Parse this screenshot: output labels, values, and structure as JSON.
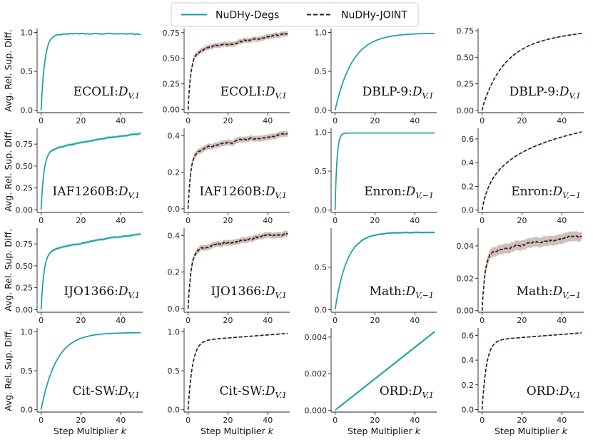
{
  "legend": {
    "position": "top-center",
    "entries": [
      {
        "label": "NuDHy-Degs",
        "color": "#1a9ea3",
        "style": "solid"
      },
      {
        "label": "NuDHy-JOINT",
        "color": "#3b1a12",
        "style": "dashed"
      }
    ]
  },
  "chart_data": {
    "type": "line",
    "layout": {
      "rows": 4,
      "cols": 4
    },
    "shared_ylabel": "Avg. Rel. Sup. Diff.",
    "shared_xlabel": "Step Multiplier",
    "shared_xlabel_var": "k",
    "xlim": [
      -2,
      51
    ],
    "x_ticks": [
      0,
      20,
      40
    ],
    "band_color": "#c5b5b2",
    "band_color_teal": "#9fd8da",
    "panels": [
      {
        "row": 0,
        "col": 0,
        "dataset": "ECOLI",
        "subscript": "V,1",
        "series": "NuDHy-Degs",
        "ylim": [
          -0.03,
          1.05
        ],
        "yticks": [
          0.0,
          0.5,
          1.0
        ],
        "tick_labels": [
          "0.0",
          "0.5",
          "1.0"
        ],
        "final": 0.98,
        "rate": 0.55,
        "noise": 0.006,
        "band": 0.008
      },
      {
        "row": 0,
        "col": 1,
        "dataset": "ECOLI",
        "subscript": "V,1",
        "series": "NuDHy-JOINT",
        "ylim": [
          -0.03,
          0.79
        ],
        "yticks": [
          0.0,
          0.25,
          0.5,
          0.75
        ],
        "tick_labels": [
          "0.00",
          "0.25",
          "0.50",
          "0.75"
        ],
        "final": 0.73,
        "curve": "sqrtlike",
        "noise": 0.012,
        "band": 0.025
      },
      {
        "row": 0,
        "col": 2,
        "dataset": "DBLP-9",
        "subscript": "V,1",
        "series": "NuDHy-Degs",
        "ylim": [
          -0.03,
          1.05
        ],
        "yticks": [
          0.0,
          0.5,
          1.0
        ],
        "tick_labels": [
          "0.0",
          "0.5",
          "1.0"
        ],
        "final": 0.99,
        "rate": 0.115,
        "noise": 0,
        "band": 0.002
      },
      {
        "row": 0,
        "col": 3,
        "dataset": "DBLP-9",
        "subscript": "V,1",
        "series": "NuDHy-JOINT",
        "ylim": [
          -0.02,
          0.77
        ],
        "yticks": [
          0.0,
          0.25,
          0.5,
          0.75
        ],
        "tick_labels": [
          "0.00",
          "0.25",
          "0.50",
          "0.75"
        ],
        "final": 0.73,
        "curve": "smooth",
        "noise": 0,
        "band": 0.003
      },
      {
        "row": 1,
        "col": 0,
        "dataset": "IAF1260B",
        "subscript": "V,1",
        "series": "NuDHy-Degs",
        "ylim": [
          -0.03,
          0.93
        ],
        "yticks": [
          0.0,
          0.25,
          0.5,
          0.75
        ],
        "tick_labels": [
          "0.00",
          "0.25",
          "0.50",
          "0.75"
        ],
        "final": 0.87,
        "curve": "sqrtlike",
        "noise": 0.005,
        "band": 0.015
      },
      {
        "row": 1,
        "col": 1,
        "dataset": "IAF1260B",
        "subscript": "V,1",
        "series": "NuDHy-JOINT",
        "ylim": [
          -0.02,
          0.44
        ],
        "yticks": [
          0.0,
          0.2,
          0.4
        ],
        "tick_labels": [
          "0.0",
          "0.2",
          "0.4"
        ],
        "final": 0.41,
        "curve": "sqrtlike",
        "noise": 0.006,
        "band": 0.016
      },
      {
        "row": 1,
        "col": 2,
        "dataset": "Enron",
        "subscript": "V,−1",
        "series": "NuDHy-Degs",
        "ylim": [
          -0.03,
          1.05
        ],
        "yticks": [
          0.0,
          0.5,
          1.0
        ],
        "tick_labels": [
          "0.0",
          "0.5",
          "1.0"
        ],
        "final": 0.99,
        "rate": 1.1,
        "noise": 0,
        "band": 0.002
      },
      {
        "row": 1,
        "col": 3,
        "dataset": "Enron",
        "subscript": "V,−1",
        "series": "NuDHy-JOINT",
        "ylim": [
          -0.02,
          0.69
        ],
        "yticks": [
          0.0,
          0.2,
          0.4,
          0.6
        ],
        "tick_labels": [
          "0.0",
          "0.2",
          "0.4",
          "0.6"
        ],
        "final": 0.66,
        "curve": "log",
        "noise": 0,
        "band": 0.003
      },
      {
        "row": 2,
        "col": 0,
        "dataset": "IJO1366",
        "subscript": "V,1",
        "series": "NuDHy-Degs",
        "ylim": [
          -0.03,
          0.93
        ],
        "yticks": [
          0.0,
          0.25,
          0.5,
          0.75
        ],
        "tick_labels": [
          "0.00",
          "0.25",
          "0.50",
          "0.75"
        ],
        "final": 0.86,
        "curve": "sqrtlike",
        "noise": 0.005,
        "band": 0.015
      },
      {
        "row": 2,
        "col": 1,
        "dataset": "IJO1366",
        "subscript": "V,1",
        "series": "NuDHy-JOINT",
        "ylim": [
          -0.02,
          0.44
        ],
        "yticks": [
          0.0,
          0.2,
          0.4
        ],
        "tick_labels": [
          "0.0",
          "0.2",
          "0.4"
        ],
        "final": 0.41,
        "curve": "sqrtlike",
        "noise": 0.008,
        "band": 0.016
      },
      {
        "row": 2,
        "col": 2,
        "dataset": "Math",
        "subscript": "V,−1",
        "series": "NuDHy-Degs",
        "ylim": [
          -0.03,
          0.96
        ],
        "yticks": [
          0.0,
          0.5
        ],
        "tick_labels": [
          "0.0",
          "0.5"
        ],
        "final": 0.91,
        "curve": "mix",
        "noise": 0.003,
        "band": 0.012
      },
      {
        "row": 2,
        "col": 3,
        "dataset": "Math",
        "subscript": "V,−1",
        "series": "NuDHy-JOINT",
        "ylim": [
          -0.001,
          0.051
        ],
        "yticks": [
          0.0,
          0.02,
          0.04
        ],
        "tick_labels": [
          "0.00",
          "0.02",
          "0.04"
        ],
        "final": 0.046,
        "curve": "sqrtlike",
        "noise": 0.0008,
        "band": 0.003
      },
      {
        "row": 3,
        "col": 0,
        "dataset": "Cit-SW",
        "subscript": "V,1",
        "series": "NuDHy-Degs",
        "ylim": [
          -0.03,
          1.05
        ],
        "yticks": [
          0.0,
          0.5,
          1.0
        ],
        "tick_labels": [
          "0.0",
          "0.5",
          "1.0"
        ],
        "final": 0.99,
        "rate": 0.13,
        "noise": 0,
        "band": 0.002
      },
      {
        "row": 3,
        "col": 1,
        "dataset": "Cit-SW",
        "subscript": "V,1",
        "series": "NuDHy-JOINT",
        "ylim": [
          -0.03,
          1.05
        ],
        "yticks": [
          0.0,
          0.5,
          1.0
        ],
        "tick_labels": [
          "0.0",
          "0.5",
          "1.0"
        ],
        "final": 0.98,
        "curve": "fastsat",
        "noise": 0,
        "band": 0.003
      },
      {
        "row": 3,
        "col": 2,
        "dataset": "ORD",
        "subscript": "V,1",
        "series": "NuDHy-Degs",
        "ylim": [
          -0.0001,
          0.0045
        ],
        "yticks": [
          0.0,
          0.002,
          0.004
        ],
        "tick_labels": [
          "0.000",
          "0.002",
          "0.004"
        ],
        "final": 0.0043,
        "curve": "linear",
        "noise": 0,
        "band": 7e-05
      },
      {
        "row": 3,
        "col": 3,
        "dataset": "ORD",
        "subscript": "V,1",
        "series": "NuDHy-JOINT",
        "ylim": [
          -0.02,
          0.66
        ],
        "yticks": [
          0.0,
          0.2,
          0.4,
          0.6
        ],
        "tick_labels": [
          "0.0",
          "0.2",
          "0.4",
          "0.6"
        ],
        "final": 0.62,
        "curve": "fastsat",
        "noise": 0,
        "band": 0.002
      }
    ]
  }
}
